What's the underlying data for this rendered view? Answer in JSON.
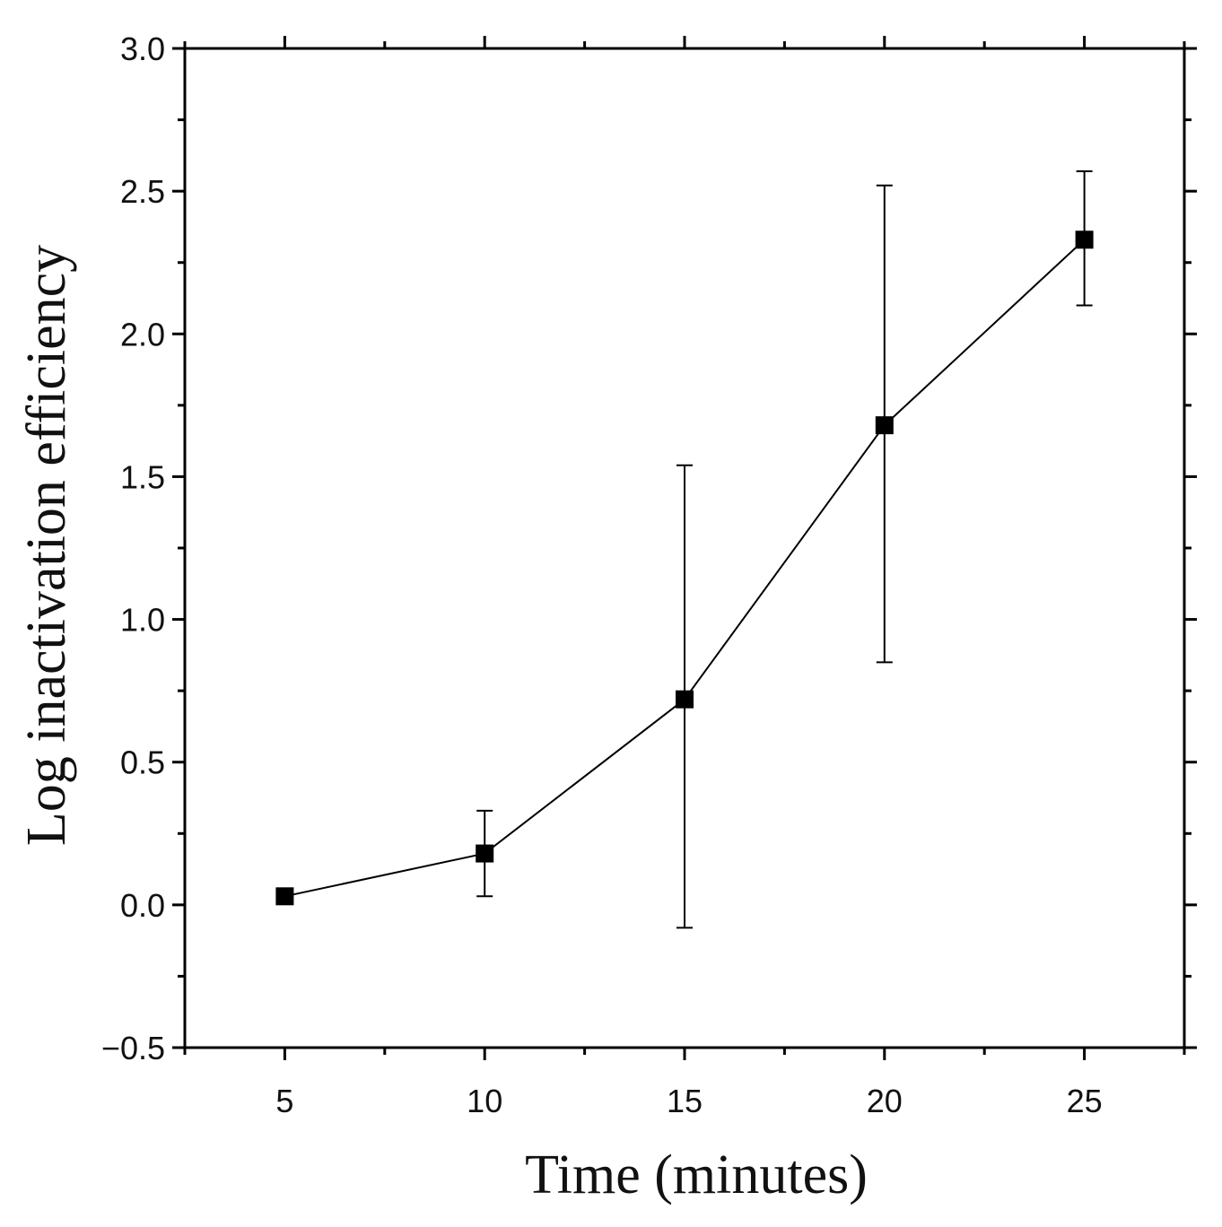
{
  "chart_data": {
    "type": "line",
    "title": "",
    "xlabel": "Time (minutes)",
    "ylabel": "Log inactivation efficiency",
    "xlim": [
      2.5,
      27.5
    ],
    "ylim": [
      -0.5,
      3.0
    ],
    "x_ticks": [
      5,
      10,
      15,
      20,
      25
    ],
    "x_minor_ticks": [
      2.5,
      7.5,
      12.5,
      17.5,
      22.5,
      27.5
    ],
    "y_ticks": [
      -0.5,
      0.0,
      0.5,
      1.0,
      1.5,
      2.0,
      2.5,
      3.0
    ],
    "y_tick_labels": [
      "−0.5",
      "0.0",
      "0.5",
      "1.0",
      "1.5",
      "2.0",
      "2.5",
      "3.0"
    ],
    "y_minor_ticks": [
      -0.25,
      0.25,
      0.75,
      1.25,
      1.75,
      2.25,
      2.75
    ],
    "grid": false,
    "legend": "none",
    "series": [
      {
        "marker": "square",
        "color": "#000000",
        "points": [
          {
            "x": 5,
            "y": 0.03,
            "err_low": 0.03,
            "err_high": 0.03
          },
          {
            "x": 10,
            "y": 0.18,
            "err_low": 0.03,
            "err_high": 0.33
          },
          {
            "x": 15,
            "y": 0.72,
            "err_low": -0.08,
            "err_high": 1.54
          },
          {
            "x": 20,
            "y": 1.68,
            "err_low": 0.85,
            "err_high": 2.52
          },
          {
            "x": 25,
            "y": 2.33,
            "err_low": 2.1,
            "err_high": 2.57
          }
        ]
      }
    ]
  }
}
